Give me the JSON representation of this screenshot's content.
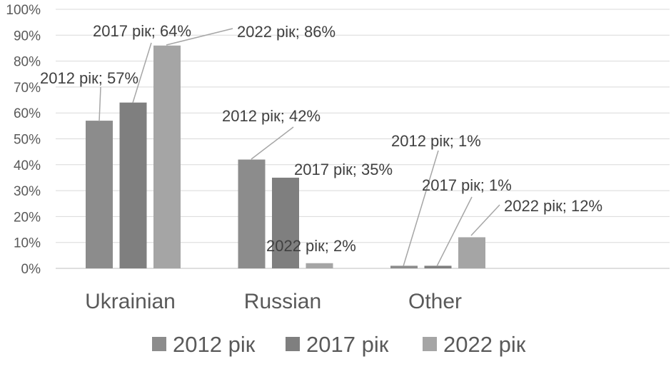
{
  "chart_data": {
    "type": "bar",
    "title": "",
    "xlabel": "",
    "ylabel": "",
    "categories": [
      "Ukrainian",
      "Russian",
      "Other"
    ],
    "series": [
      {
        "name": "2012 рік",
        "values": [
          57,
          42,
          1
        ],
        "color": "#8c8c8c"
      },
      {
        "name": "2017 рік",
        "values": [
          64,
          35,
          1
        ],
        "color": "#7f7f7f"
      },
      {
        "name": "2022 рік",
        "values": [
          86,
          2,
          12
        ],
        "color": "#a5a5a5"
      }
    ],
    "ylim": [
      0,
      100
    ],
    "yticks": [
      "0%",
      "10%",
      "20%",
      "30%",
      "40%",
      "50%",
      "60%",
      "70%",
      "80%",
      "90%",
      "100%"
    ],
    "data_labels": [
      [
        "2012 рік; 57%",
        "2017 рік; 64%",
        "2022 рік; 86%"
      ],
      [
        "2012 рік; 42%",
        "2017 рік; 35%",
        "2022 рік; 2%"
      ],
      [
        "2012 рік; 1%",
        "2017 рік; 1%",
        "2022 рік; 12%"
      ]
    ],
    "grid": true,
    "legend": "bottom"
  }
}
